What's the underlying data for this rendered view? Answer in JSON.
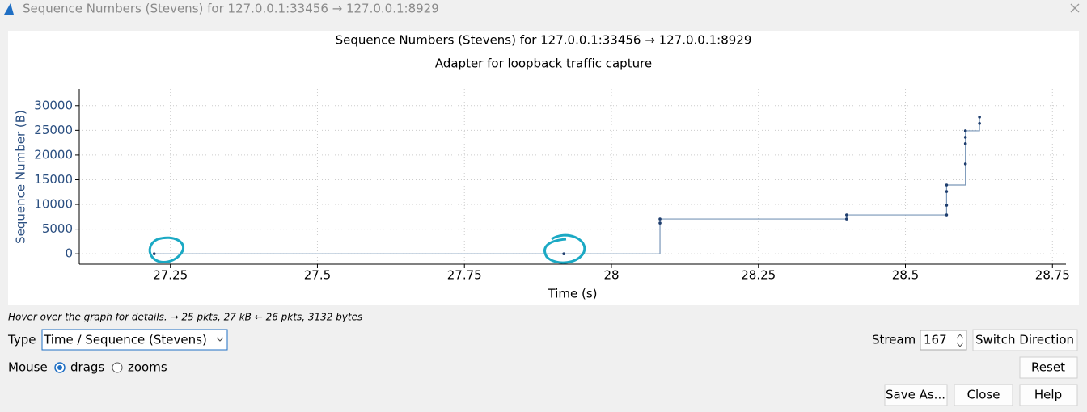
{
  "window": {
    "title": "Sequence Numbers (Stevens) for 127.0.0.1:33456 → 127.0.0.1:8929"
  },
  "chart_data": {
    "type": "step",
    "title": "Sequence Numbers (Stevens) for 127.0.0.1:33456 → 127.0.0.1:8929",
    "subtitle": "Adapter for loopback traffic capture",
    "x_label": "Time (s)",
    "y_label": "Sequence Number (B)",
    "x": [
      27.2225,
      27.919,
      28.0826,
      28.0826,
      28.4,
      28.4,
      28.57,
      28.57,
      28.57,
      28.57,
      28.602,
      28.602,
      28.602,
      28.602,
      28.626,
      28.626
    ],
    "values": [
      0,
      0,
      6230,
      7050,
      7050,
      7870,
      7870,
      9840,
      12620,
      13930,
      18200,
      22300,
      23600,
      24900,
      26400,
      27700
    ],
    "color": "#1f3e6e",
    "line_color": "#7a97b8",
    "xlim": [
      27.095,
      28.773
    ],
    "ylim": [
      -2100,
      33400
    ],
    "xticks": [
      27.25,
      27.5,
      27.75,
      28,
      28.25,
      28.5,
      28.75
    ],
    "yticks": [
      0,
      5000,
      10000,
      15000,
      20000,
      25000,
      30000
    ],
    "grid": true
  },
  "status": "Hover over the graph for details. → 25 pkts, 27 kB ← 26 pkts, 3132 bytes",
  "controls": {
    "type_label": "Type",
    "type_value": "Time / Sequence (Stevens)",
    "stream_label": "Stream",
    "stream_value": "167",
    "switch": "Switch Direction",
    "mouse_label": "Mouse",
    "drags": "drags",
    "zooms": "zooms",
    "reset": "Reset",
    "save": "Save As...",
    "close": "Close",
    "help": "Help"
  }
}
